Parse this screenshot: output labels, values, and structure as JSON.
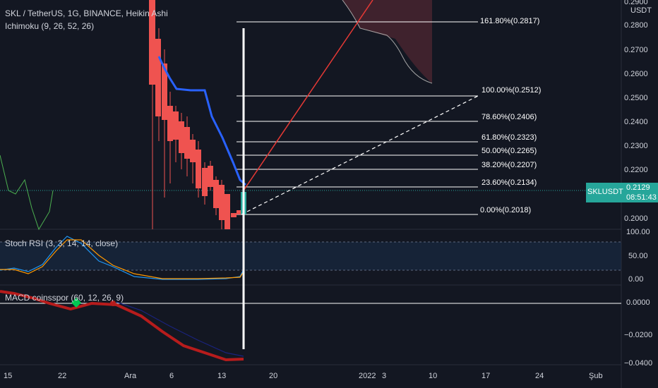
{
  "header": {
    "symbol_line": "SKL / TetherUS, 1G, BINANCE, Heikin Ashi",
    "ichimoku_line": "Ichimoku (9, 26, 52, 26)",
    "stoch_line": "Stoch RSI (3, 3, 14, 14, close)",
    "macd_line": "MACD coinsspor (60, 12, 26, 9)"
  },
  "price_axis": {
    "currency": "USDT",
    "top_partial": "0.2900",
    "ticks": [
      "0.2800",
      "0.2700",
      "0.2600",
      "0.2500",
      "0.2400",
      "0.2300",
      "0.2200",
      "0.2000"
    ],
    "current_symbol": "SKLUSDT",
    "current_price": "0.2129",
    "countdown": "08:51:43"
  },
  "stoch_axis": {
    "ticks": [
      "100.00",
      "50.00",
      "0.00"
    ]
  },
  "macd_axis": {
    "ticks": [
      "0.0000",
      "−0.0200",
      "−0.0400"
    ]
  },
  "time_axis": [
    "15",
    "22",
    "Ara",
    "6",
    "13",
    "20",
    "2022",
    "3",
    "10",
    "17",
    "24",
    "Şub"
  ],
  "fib_levels": [
    {
      "label": "161.80%(0.2817)"
    },
    {
      "label": "100.00%(0.2512)"
    },
    {
      "label": "78.60%(0.2406)"
    },
    {
      "label": "61.80%(0.2323)"
    },
    {
      "label": "50.00%(0.2265)"
    },
    {
      "label": "38.20%(0.2207)"
    },
    {
      "label": "23.60%(0.2134)"
    },
    {
      "label": "0.00%(0.2018)"
    }
  ],
  "colors": {
    "background": "#131722",
    "bear": "#ef5350",
    "bull": "#26a69a",
    "ichimoku": "#2962ff",
    "trend": "#e53935",
    "stoch_k": "#2196f3",
    "stoch_d": "#ff9800",
    "macd_line": "#b71c1c",
    "macd_signal_marker": "#00c853"
  }
}
